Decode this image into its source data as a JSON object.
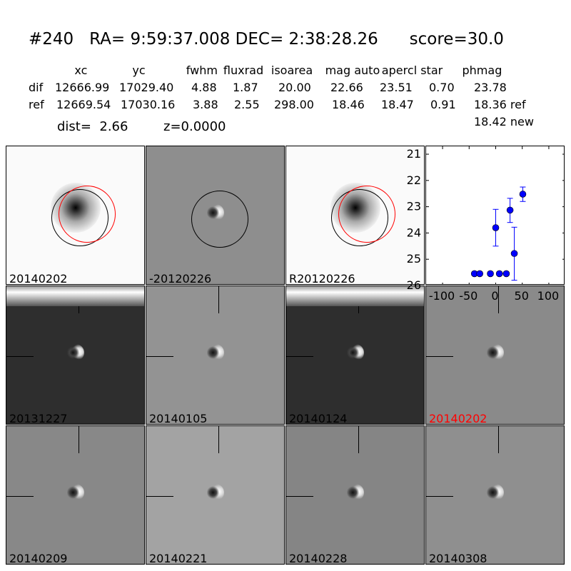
{
  "title": "#240   RA= 9:59:37.008 DEC= 2:38:28.26      score=30.0",
  "table": {
    "headers": [
      "xc",
      "yc",
      "fwhm",
      "fluxrad",
      "isoarea",
      "mag auto",
      "aper",
      "cl star",
      "phmag"
    ],
    "rows": [
      {
        "label": "dif",
        "values": [
          "12666.99",
          "17029.40",
          "4.88",
          "1.87",
          "20.00",
          "22.66",
          "23.51",
          "0.70",
          "23.78"
        ]
      },
      {
        "label": "ref",
        "values": [
          "12669.54",
          "17030.16",
          "3.88",
          "2.55",
          "298.00",
          "18.46",
          "18.47",
          "0.91",
          "18.36 ref"
        ]
      }
    ],
    "extra": "18.42 new"
  },
  "dist": "dist=  2.66",
  "z": "z=0.0000",
  "panels": [
    {
      "label": "20140202",
      "bg": "#fafafa",
      "type": "ref"
    },
    {
      "label": "-20120226",
      "bg": "#8e8e8e",
      "type": "dif"
    },
    {
      "label": "R20120226",
      "bg": "#fafafa",
      "type": "ref"
    },
    {
      "label": "20131227",
      "bg": "#2e2e2e",
      "type": "dark"
    },
    {
      "label": "20140105",
      "bg": "#939393",
      "type": "dif"
    },
    {
      "label": "20140124",
      "bg": "#2e2e2e",
      "type": "dark"
    },
    {
      "label": "20140202",
      "bg": "#8a8a8a",
      "type": "dif",
      "label_color": "#ff0000"
    },
    {
      "label": "20140209",
      "bg": "#888888",
      "type": "dif"
    },
    {
      "label": "20140221",
      "bg": "#a3a3a3",
      "type": "dif"
    },
    {
      "label": "20140228",
      "bg": "#858585",
      "type": "dif"
    },
    {
      "label": "20140308",
      "bg": "#8f8f8f",
      "type": "dif"
    }
  ],
  "chart_data": {
    "type": "scatter",
    "xlim": [
      -131,
      131
    ],
    "ylim": [
      26,
      20.7
    ],
    "y_inverted": true,
    "xticks": [
      -100,
      -50,
      0,
      50,
      100
    ],
    "yticks": [
      21,
      22,
      23,
      24,
      25,
      26
    ],
    "color": "#0000ff",
    "points": [
      {
        "x": -40,
        "y": 25.55,
        "err": [
          25.55,
          25.55
        ]
      },
      {
        "x": -30,
        "y": 25.55,
        "err": [
          25.55,
          25.55
        ]
      },
      {
        "x": -10,
        "y": 25.55,
        "err": [
          25.55,
          25.55
        ]
      },
      {
        "x": 7,
        "y": 25.55,
        "err": [
          25.55,
          25.55
        ]
      },
      {
        "x": 20,
        "y": 25.55,
        "err": [
          25.55,
          25.55
        ]
      },
      {
        "x": 0,
        "y": 23.8,
        "err": [
          23.1,
          24.5
        ]
      },
      {
        "x": 27,
        "y": 23.13,
        "err": [
          22.68,
          23.6
        ]
      },
      {
        "x": 35,
        "y": 24.78,
        "err": [
          23.78,
          25.8
        ]
      },
      {
        "x": 51,
        "y": 22.52,
        "err": [
          22.25,
          22.8
        ]
      }
    ]
  }
}
